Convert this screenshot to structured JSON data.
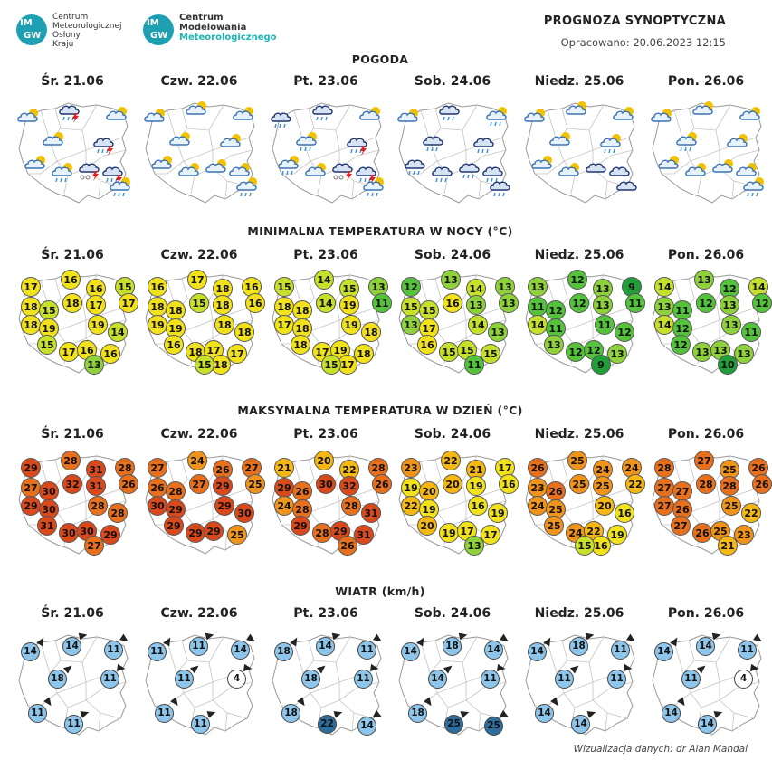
{
  "header": {
    "title": "PROGNOZA SYNOPTYCZNA",
    "updated": "Opracowano: 20.06.2023 12:15"
  },
  "logo1": {
    "badge_top": "IM",
    "badge_bottom": "GW",
    "lines": [
      "Centrum",
      "Meteorologicznej",
      "Osłony",
      "Kraju"
    ]
  },
  "logo2": {
    "badge_top": "IM",
    "badge_bottom": "GW",
    "lines": [
      "Centrum",
      "Modelowania",
      "Meteorologicznego"
    ]
  },
  "sections": {
    "weather": "POGODA",
    "tmin": "MINIMALNA TEMPERATURA W NOCY (°C)",
    "tmax": "MAKSYMALNA TEMPERATURA W DZIEŃ (°C)",
    "wind": "WIATR (km/h)"
  },
  "days": [
    "Śr. 21.06",
    "Czw. 22.06",
    "Pt. 23.06",
    "Sob. 24.06",
    "Niedz. 25.06",
    "Pon. 26.06"
  ],
  "weather_icons": [
    [
      "sun-cloud",
      "storm-rain",
      "sun-cloud",
      "sun-cloud",
      "storm-rain",
      "sun-cloud",
      "sun-cloud-rain",
      "storm-fog",
      "storm-rain",
      "sun-cloud-rain"
    ],
    [
      "sun-cloud",
      "sun-cloud",
      "sun-cloud",
      "sun-cloud",
      "sun-cloud",
      "sun-cloud",
      "sun-cloud",
      "sun-cloud",
      "sun-cloud",
      "sun-cloud-rain"
    ],
    [
      "dark-cloud-rain",
      "dark-cloud-rain",
      "sun-cloud",
      "sun-cloud-rain",
      "storm-rain",
      "sun-cloud-rain",
      "sun-cloud",
      "storm-fog",
      "storm-rain",
      "sun-cloud-rain"
    ],
    [
      "sun-cloud",
      "dark-cloud-rain",
      "sun-cloud-rain",
      "dark-cloud-rain",
      "dark-cloud-rain",
      "dark-cloud-rain",
      "dark-cloud-rain",
      "dark-cloud-rain",
      "dark-cloud-rain",
      "dark-cloud-rain"
    ],
    [
      "sun-cloud",
      "sun-cloud",
      "sun-cloud",
      "sun-cloud",
      "sun-cloud-rain",
      "sun-cloud",
      "sun-cloud",
      "dark-cloud",
      "dark-cloud",
      "dark-cloud"
    ],
    [
      "sun-cloud",
      "sun-cloud",
      "sun-cloud",
      "sun-cloud-rain",
      "sun-cloud",
      "sun-cloud",
      "sun-cloud",
      "sun-cloud",
      "sun-cloud",
      "sun-cloud-rain"
    ]
  ],
  "tmin": [
    [
      17,
      16,
      16,
      15,
      17,
      18,
      15,
      18,
      17,
      18,
      19,
      19,
      14,
      15,
      17,
      16,
      16,
      13
    ],
    [
      16,
      17,
      18,
      16,
      16,
      18,
      18,
      15,
      18,
      19,
      19,
      18,
      18,
      16,
      18,
      17,
      17,
      18,
      15
    ],
    [
      15,
      14,
      15,
      13,
      11,
      18,
      18,
      14,
      19,
      17,
      18,
      19,
      18,
      18,
      17,
      19,
      18,
      17,
      15
    ],
    [
      12,
      13,
      14,
      13,
      13,
      15,
      15,
      16,
      13,
      13,
      17,
      14,
      13,
      16,
      15,
      15,
      15,
      11
    ],
    [
      13,
      12,
      13,
      9,
      11,
      11,
      12,
      12,
      13,
      14,
      11,
      11,
      12,
      13,
      12,
      12,
      13,
      9
    ],
    [
      14,
      13,
      12,
      14,
      12,
      13,
      11,
      12,
      13,
      14,
      12,
      13,
      11,
      12,
      13,
      13,
      13,
      10
    ]
  ],
  "tmax": [
    [
      29,
      28,
      31,
      28,
      26,
      27,
      30,
      32,
      31,
      29,
      30,
      28,
      28,
      31,
      30,
      30,
      29,
      27
    ],
    [
      27,
      24,
      26,
      27,
      25,
      26,
      28,
      27,
      29,
      30,
      29,
      29,
      30,
      29,
      29,
      29,
      25
    ],
    [
      21,
      20,
      22,
      28,
      26,
      29,
      26,
      30,
      32,
      24,
      28,
      28,
      31,
      29,
      28,
      29,
      31,
      26
    ],
    [
      23,
      22,
      21,
      17,
      16,
      19,
      20,
      20,
      19,
      22,
      19,
      16,
      19,
      20,
      19,
      17,
      17,
      13
    ],
    [
      26,
      25,
      24,
      24,
      22,
      23,
      26,
      25,
      25,
      24,
      25,
      20,
      16,
      25,
      24,
      22,
      19,
      16,
      15
    ],
    [
      28,
      27,
      25,
      26,
      26,
      27,
      27,
      28,
      28,
      27,
      26,
      25,
      22,
      27,
      26,
      25,
      23,
      21
    ]
  ],
  "wind": [
    [
      14,
      14,
      11,
      18,
      11,
      11,
      11
    ],
    [
      11,
      11,
      14,
      11,
      4,
      11,
      11
    ],
    [
      18,
      14,
      11,
      18,
      11,
      18,
      22,
      14
    ],
    [
      14,
      18,
      14,
      14,
      11,
      18,
      25,
      25
    ],
    [
      14,
      18,
      11,
      11,
      11,
      14,
      14
    ],
    [
      14,
      14,
      11,
      11,
      4,
      14,
      14
    ]
  ],
  "colors": {
    "t10": "#1f9e3a",
    "t11_12": "#55c23c",
    "t13": "#8fd13a",
    "t14_15": "#c6e02b",
    "t16_19": "#f2e21b",
    "t20_22": "#f5b813",
    "t23_25": "#f0931a",
    "t26_28": "#e8701d",
    "t29_plus": "#d9491b",
    "wind_light": "#8ec5ea",
    "wind_strong": "#2f6e9c"
  },
  "credit": "Wizualizacja danych: dr Alan Mandal"
}
